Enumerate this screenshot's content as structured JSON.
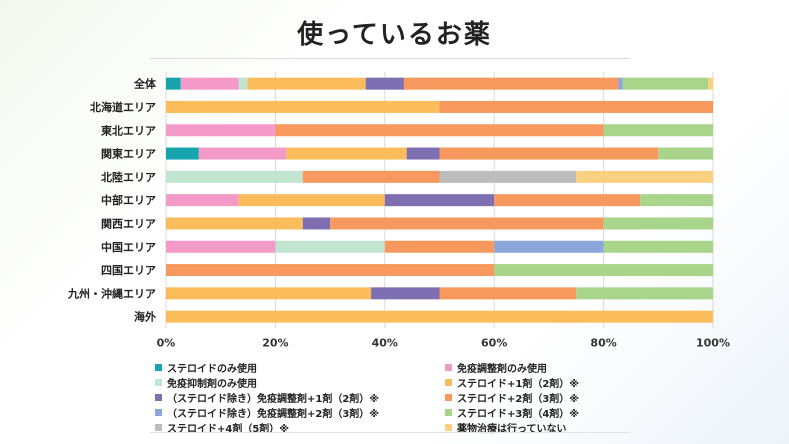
{
  "page": {
    "title": "使っているお薬"
  },
  "chart_data": {
    "type": "bar",
    "orientation": "horizontal",
    "stacked": true,
    "normalized": true,
    "title": "使っているお薬",
    "xlim": [
      0,
      100
    ],
    "x_ticks": [
      "0%",
      "20%",
      "40%",
      "60%",
      "80%",
      "100%"
    ],
    "grid": true,
    "legend_position": "bottom",
    "categories": [
      "全体",
      "北海道エリア",
      "東北エリア",
      "関東エリア",
      "北陸エリア",
      "中部エリア",
      "関西エリア",
      "中国エリア",
      "四国エリア",
      "九州・沖縄エリア",
      "海外"
    ],
    "series": [
      {
        "name": "ステロイドのみ使用",
        "color": "#17a4ae",
        "values": [
          2.7,
          0,
          0,
          6,
          0,
          0,
          0,
          0,
          0,
          0,
          0
        ]
      },
      {
        "name": "免疫調整剤のみ使用",
        "color": "#f49ac8",
        "values": [
          10.6,
          0,
          20,
          16,
          0,
          13.3,
          0,
          20,
          0,
          0,
          0
        ]
      },
      {
        "name": "免疫抑制剤のみ使用",
        "color": "#c2e5d2",
        "values": [
          1.6,
          0,
          0,
          0,
          25,
          0,
          0,
          20,
          0,
          0,
          0
        ]
      },
      {
        "name": "ステロイド+1剤（2剤）※",
        "color": "#fbbd5c",
        "values": [
          21.6,
          50,
          0,
          22,
          0,
          26.7,
          25,
          0,
          0,
          37.5,
          100
        ]
      },
      {
        "name": "（ステロイド除き）免疫調整剤+1剤（2剤）※",
        "color": "#7e6fb3",
        "values": [
          7,
          0,
          0,
          6,
          0,
          20,
          5,
          0,
          0,
          12.5,
          0
        ]
      },
      {
        "name": "ステロイド+2剤（3剤）※",
        "color": "#f7995e",
        "values": [
          39.2,
          50,
          60,
          40,
          25,
          26.7,
          50,
          20,
          60,
          25,
          0
        ]
      },
      {
        "name": "（ステロイド除き）免疫調整剤+2剤（3剤）※",
        "color": "#8aa6db",
        "values": [
          0.8,
          0,
          0,
          0,
          0,
          0,
          0,
          20,
          0,
          0,
          0
        ]
      },
      {
        "name": "ステロイド+3剤（4剤）※",
        "color": "#a9d58b",
        "values": [
          15.6,
          0,
          20,
          10,
          0,
          13.3,
          20,
          20,
          40,
          25,
          0
        ]
      },
      {
        "name": "ステロイド+4剤（5剤）※",
        "color": "#bdbdbd",
        "values": [
          0,
          0,
          0,
          0,
          25,
          0,
          0,
          0,
          0,
          0,
          0
        ]
      },
      {
        "name": "薬物治療は行っていない",
        "color": "#fcd081",
        "values": [
          0.9,
          0,
          0,
          0,
          25,
          0,
          0,
          0,
          0,
          0,
          0
        ]
      }
    ]
  }
}
